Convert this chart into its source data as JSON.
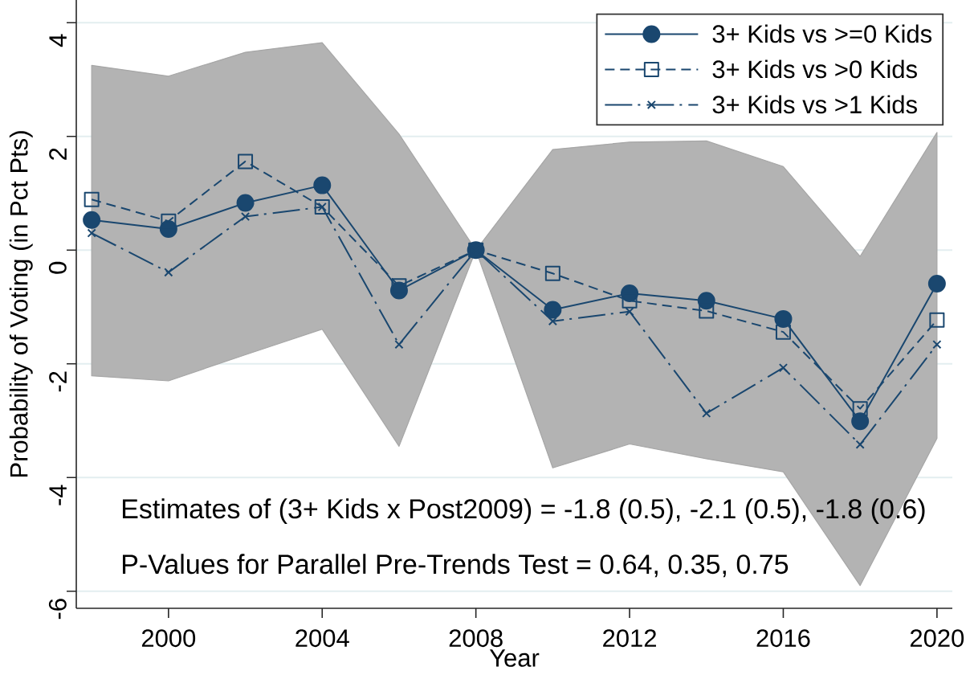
{
  "chart_data": {
    "type": "line",
    "xlabel": "Year",
    "ylabel": "Probability of Voting (in Pct Pts)",
    "x": [
      1998,
      2000,
      2002,
      2004,
      2006,
      2008,
      2010,
      2012,
      2014,
      2016,
      2018,
      2020
    ],
    "series": [
      {
        "name": "3+ Kids vs >=0 Kids",
        "color": "#1a476f",
        "marker": "circle",
        "line_style": "solid",
        "values": [
          0.53,
          0.37,
          0.83,
          1.14,
          -0.71,
          0,
          -1.05,
          -0.76,
          -0.89,
          -1.21,
          -3.01,
          -0.59
        ],
        "lower": [
          -2.21,
          -2.3,
          -1.84,
          -1.39,
          -3.45,
          0,
          -3.83,
          -3.41,
          -3.67,
          -3.9,
          -5.9,
          -3.31
        ],
        "upper": [
          3.25,
          3.06,
          3.48,
          3.65,
          2.04,
          0,
          1.77,
          1.9,
          1.92,
          1.47,
          -0.11,
          2.07
        ]
      },
      {
        "name": "3+ Kids vs >0 Kids",
        "color": "#1a476f",
        "marker": "square",
        "line_style": "dashed",
        "values": [
          0.89,
          0.51,
          1.56,
          0.76,
          -0.63,
          0,
          -0.41,
          -0.89,
          -1.07,
          -1.44,
          -2.79,
          -1.23
        ]
      },
      {
        "name": "3+ Kids vs >1 Kids",
        "color": "#1a476f",
        "marker": "cross",
        "line_style": "dashdot",
        "values": [
          0.3,
          -0.39,
          0.59,
          0.76,
          -1.66,
          0,
          -1.25,
          -1.08,
          -2.87,
          -2.07,
          -3.42,
          -1.66
        ]
      }
    ],
    "xlim": [
      1997.6,
      2020.4
    ],
    "ylim": [
      -6.3,
      4.4
    ],
    "xticks": [
      2000,
      2004,
      2008,
      2012,
      2016,
      2020
    ],
    "yticks": [
      -6,
      -4,
      -2,
      0,
      2,
      4
    ],
    "grid": "y",
    "legend": "top right",
    "annotations": [
      "Estimates of (3+ Kids x Post2009) = -1.8 (0.5), -2.1 (0.5), -1.8 (0.6)",
      "P-Values for Parallel Pre-Trends Test = 0.64, 0.35, 0.75"
    ]
  }
}
